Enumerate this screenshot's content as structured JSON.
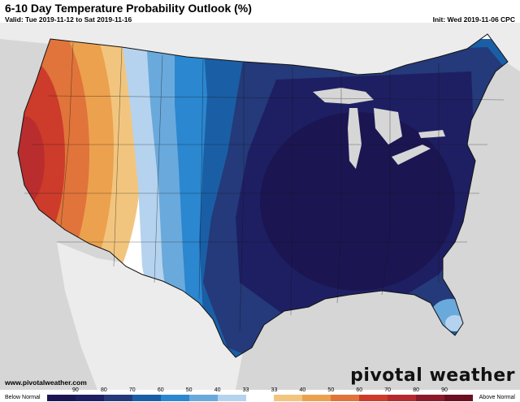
{
  "header": {
    "title": "6-10 Day Temperature Probability Outlook (%)",
    "valid": "Valid: Tue 2019-11-12 to Sat 2019-11-16",
    "init": "Init: Wed 2019-11-06 CPC"
  },
  "footer": {
    "website": "www.pivotalweather.com",
    "brand": "pivotal weather"
  },
  "legend": {
    "left_label": "Below Normal",
    "right_label": "Above Normal",
    "ticks": [
      "90",
      "80",
      "70",
      "60",
      "50",
      "40",
      "33",
      "33",
      "40",
      "50",
      "60",
      "70",
      "80",
      "90"
    ],
    "colors": [
      "#1b1652",
      "#1e1f63",
      "#243a7a",
      "#1a5fa6",
      "#2b87cf",
      "#6aa9dc",
      "#b5d3ee",
      "#ffffff",
      "#f2c57f",
      "#eca14f",
      "#e0743b",
      "#cd3b2b",
      "#b52a2f",
      "#8c1b2a",
      "#6b1020"
    ]
  },
  "map": {
    "region": "Continental United States",
    "background_color": "#d6d6d6",
    "land_color": "#ffffff",
    "regions": [
      {
        "name": "west-coast",
        "category": "above",
        "max_probability": "90"
      },
      {
        "name": "rockies-plains",
        "category": "below",
        "max_probability": "60"
      },
      {
        "name": "central-eastern",
        "category": "below",
        "max_probability": "90"
      }
    ]
  }
}
